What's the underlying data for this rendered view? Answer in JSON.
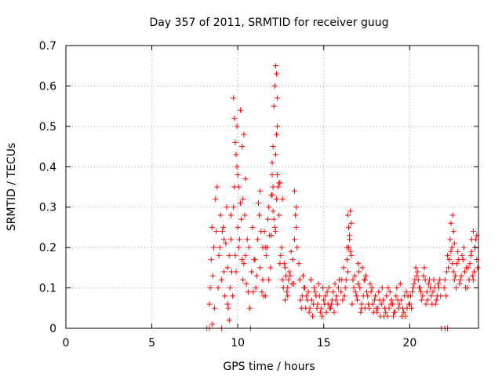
{
  "chart_data": {
    "type": "scatter",
    "title": "Day 357 of 2011, SRMTID for receiver guug",
    "xlabel": "GPS time / hours",
    "ylabel": "SRMTID / TECUs",
    "xlim": [
      0,
      24
    ],
    "ylim": [
      0,
      0.7
    ],
    "x_ticks": [
      0,
      5,
      10,
      15,
      20
    ],
    "x_tick_labels": [
      "0",
      "5",
      "10",
      "15",
      "20"
    ],
    "y_ticks": [
      0,
      0.1,
      0.2,
      0.3,
      0.4,
      0.5,
      0.6,
      0.7
    ],
    "y_tick_labels": [
      "0",
      "0.1",
      "0.2",
      "0.3",
      "0.4",
      "0.5",
      "0.6",
      "0.7"
    ],
    "grid": true,
    "legend": "none",
    "marker": "plus",
    "color": "#ff0000",
    "series": [
      {
        "x": [
          8.2,
          8.35,
          8.5,
          9.05,
          10.75,
          21.85,
          22.05,
          22.2,
          8.35,
          8.5,
          8.7,
          8.9,
          9.05,
          9.25,
          9.45,
          9.6,
          9.75,
          9.9,
          10.05,
          10.2,
          10.35,
          10.5,
          10.65,
          10.85,
          8.4,
          8.6,
          8.8,
          9.0,
          9.2,
          9.4,
          9.55,
          9.7,
          9.85,
          10.0,
          10.15,
          10.3,
          10.45,
          10.6,
          10.8,
          10.95,
          8.45,
          8.65,
          8.85,
          9.15,
          9.35,
          9.5,
          9.65,
          9.8,
          9.95,
          10.1,
          10.25,
          10.4,
          10.55,
          10.7,
          10.9,
          9.75,
          9.8,
          9.85,
          9.9,
          9.95,
          10.0,
          10.05,
          10.15,
          10.25,
          10.3,
          10.35,
          10.45,
          9.1,
          9.2,
          9.3,
          9.4,
          9.5,
          9.6,
          8.55,
          8.75,
          8.95,
          11.0,
          11.15,
          11.3,
          11.45,
          11.6,
          11.75,
          11.9,
          12.05,
          12.2,
          12.35,
          12.5,
          12.65,
          12.8,
          12.95,
          13.1,
          13.25,
          13.4,
          13.55,
          11.05,
          11.2,
          11.35,
          11.5,
          11.65,
          11.8,
          11.95,
          12.1,
          12.25,
          12.4,
          12.55,
          12.7,
          12.85,
          13.0,
          13.15,
          13.3,
          13.45,
          11.1,
          11.25,
          11.4,
          11.55,
          11.7,
          11.85,
          12.0,
          12.15,
          12.3,
          12.45,
          12.6,
          12.75,
          12.9,
          13.05,
          13.2,
          13.35,
          12.0,
          12.05,
          12.1,
          12.15,
          12.2,
          12.25,
          12.3,
          12.2,
          12.25,
          12.3,
          11.95,
          12.0,
          12.05,
          12.4,
          12.45,
          11.3,
          11.45,
          11.6,
          11.8,
          12.6,
          12.75,
          12.9,
          13.3,
          13.4,
          13.6,
          13.75,
          13.9,
          14.05,
          14.2,
          14.35,
          14.5,
          14.65,
          14.8,
          14.95,
          15.1,
          15.25,
          15.4,
          15.55,
          15.7,
          15.85,
          13.65,
          13.8,
          13.95,
          14.1,
          14.25,
          14.4,
          14.55,
          14.7,
          14.85,
          15.0,
          15.15,
          15.3,
          15.45,
          15.6,
          15.75,
          15.9,
          13.7,
          13.85,
          14.0,
          14.15,
          14.3,
          14.45,
          14.6,
          14.75,
          14.9,
          15.05,
          15.2,
          15.35,
          15.5,
          15.65,
          15.8,
          16.0,
          16.15,
          16.3,
          16.45,
          16.6,
          16.75,
          16.9,
          17.05,
          17.2,
          17.35,
          17.5,
          17.65,
          17.8,
          17.95,
          16.05,
          16.2,
          16.35,
          16.5,
          16.65,
          16.8,
          16.95,
          17.1,
          17.25,
          17.4,
          17.55,
          17.7,
          17.85,
          16.1,
          16.25,
          16.4,
          16.55,
          16.7,
          16.85,
          17.0,
          17.15,
          17.3,
          17.45,
          17.6,
          17.75,
          17.9,
          16.4,
          16.5,
          16.6,
          16.55,
          16.45,
          16.35,
          17.0,
          17.2,
          17.4,
          18.0,
          18.15,
          18.3,
          18.45,
          18.6,
          18.75,
          18.9,
          19.05,
          19.2,
          19.35,
          19.5,
          19.65,
          19.8,
          19.95,
          18.05,
          18.2,
          18.35,
          18.5,
          18.65,
          18.8,
          18.95,
          19.1,
          19.25,
          19.4,
          19.55,
          19.7,
          19.85,
          18.1,
          18.25,
          18.4,
          18.55,
          18.7,
          18.85,
          19.0,
          19.15,
          19.3,
          19.45,
          19.6,
          19.75,
          19.9,
          20.0,
          20.15,
          20.3,
          20.45,
          20.6,
          20.75,
          20.9,
          21.05,
          21.2,
          21.35,
          21.5,
          21.65,
          21.8,
          20.05,
          20.2,
          20.35,
          20.5,
          20.65,
          20.8,
          20.95,
          21.1,
          21.25,
          21.4,
          21.55,
          21.7,
          20.1,
          20.25,
          20.4,
          20.55,
          20.7,
          20.85,
          21.0,
          21.15,
          21.3,
          21.45,
          21.6,
          21.75,
          22.0,
          22.15,
          22.3,
          22.45,
          22.6,
          22.75,
          22.9,
          23.05,
          23.2,
          23.35,
          23.5,
          23.65,
          23.8,
          23.95,
          22.05,
          22.2,
          22.35,
          22.5,
          22.65,
          22.8,
          22.95,
          23.1,
          23.25,
          23.4,
          23.55,
          23.7,
          23.85,
          22.1,
          22.25,
          22.4,
          22.55,
          22.7,
          22.85,
          23.0,
          23.15,
          23.3,
          23.45,
          23.6,
          23.75,
          23.9,
          22.4,
          22.5,
          22.55,
          22.6,
          23.6,
          23.7,
          23.8,
          23.9
        ],
        "y": [
          0,
          0,
          0.01,
          0,
          0,
          0,
          0,
          0,
          0.06,
          0.25,
          0.32,
          0.18,
          0.12,
          0.08,
          0.05,
          0.22,
          0.3,
          0.14,
          0.2,
          0.27,
          0.16,
          0.11,
          0.2,
          0.25,
          0.1,
          0.2,
          0.35,
          0.28,
          0.22,
          0.15,
          0.1,
          0.08,
          0.18,
          0.25,
          0.31,
          0.12,
          0.18,
          0.09,
          0.14,
          0.17,
          0.17,
          0.05,
          0.1,
          0.25,
          0.3,
          0.18,
          0.14,
          0.35,
          0.4,
          0.22,
          0.17,
          0.28,
          0.22,
          0.05,
          0.09,
          0.57,
          0.52,
          0.46,
          0.43,
          0.5,
          0.38,
          0.35,
          0.54,
          0.45,
          0.32,
          0.48,
          0.37,
          0.24,
          0.14,
          0.21,
          0.06,
          0.02,
          0.28,
          0.13,
          0.24,
          0.2,
          0.17,
          0.22,
          0.34,
          0.12,
          0.2,
          0.27,
          0.15,
          0.29,
          0.24,
          0.35,
          0.18,
          0.1,
          0.13,
          0.12,
          0.19,
          0.11,
          0.3,
          0.16,
          0.1,
          0.31,
          0.24,
          0.08,
          0.18,
          0.3,
          0.23,
          0.27,
          0.32,
          0.36,
          0.2,
          0.16,
          0.09,
          0.14,
          0.11,
          0.22,
          0.2,
          0.13,
          0.28,
          0.09,
          0.24,
          0.2,
          0.23,
          0.33,
          0.25,
          0.38,
          0.16,
          0.12,
          0.15,
          0.08,
          0.13,
          0.17,
          0.28,
          0.38,
          0.45,
          0.55,
          0.6,
          0.65,
          0.63,
          0.57,
          0.43,
          0.48,
          0.5,
          0.33,
          0.41,
          0.35,
          0.28,
          0.36,
          0.15,
          0.2,
          0.08,
          0.12,
          0.32,
          0.07,
          0.1,
          0.34,
          0.25,
          0.12,
          0.08,
          0.1,
          0.07,
          0.05,
          0.03,
          0.09,
          0.06,
          0.04,
          0.1,
          0.08,
          0.06,
          0.05,
          0.09,
          0.07,
          0.1,
          0.07,
          0.13,
          0.05,
          0.09,
          0.12,
          0.06,
          0.08,
          0.11,
          0.05,
          0.07,
          0.04,
          0.1,
          0.06,
          0.04,
          0.08,
          0.12,
          0.05,
          0.1,
          0.08,
          0.04,
          0.07,
          0.1,
          0.05,
          0.08,
          0.03,
          0.06,
          0.09,
          0.05,
          0.07,
          0.11,
          0.06,
          0.09,
          0.15,
          0.12,
          0.2,
          0.26,
          0.1,
          0.08,
          0.14,
          0.06,
          0.12,
          0.09,
          0.05,
          0.1,
          0.07,
          0.12,
          0.08,
          0.17,
          0.22,
          0.06,
          0.13,
          0.07,
          0.1,
          0.15,
          0.05,
          0.08,
          0.11,
          0.06,
          0.07,
          0.1,
          0.14,
          0.19,
          0.12,
          0.09,
          0.11,
          0.04,
          0.08,
          0.13,
          0.06,
          0.09,
          0.04,
          0.28,
          0.23,
          0.18,
          0.29,
          0.25,
          0.2,
          0.16,
          0.05,
          0.12,
          0.08,
          0.05,
          0.03,
          0.07,
          0.04,
          0.1,
          0.06,
          0.03,
          0.08,
          0.05,
          0.07,
          0.04,
          0.09,
          0.06,
          0.05,
          0.09,
          0.06,
          0.03,
          0.08,
          0.05,
          0.07,
          0.04,
          0.1,
          0.06,
          0.03,
          0.08,
          0.05,
          0.04,
          0.07,
          0.1,
          0.05,
          0.03,
          0.09,
          0.06,
          0.04,
          0.07,
          0.11,
          0.05,
          0.03,
          0.08,
          0.06,
          0.09,
          0.12,
          0.14,
          0.1,
          0.08,
          0.12,
          0.07,
          0.1,
          0.09,
          0.06,
          0.11,
          0.08,
          0.08,
          0.1,
          0.15,
          0.12,
          0.09,
          0.13,
          0.06,
          0.11,
          0.08,
          0.12,
          0.07,
          0.1,
          0.05,
          0.11,
          0.13,
          0.1,
          0.07,
          0.15,
          0.09,
          0.12,
          0.06,
          0.1,
          0.08,
          0.12,
          0.1,
          0.14,
          0.17,
          0.2,
          0.12,
          0.16,
          0.11,
          0.18,
          0.14,
          0.1,
          0.16,
          0.13,
          0.2,
          0.15,
          0.12,
          0.18,
          0.22,
          0.16,
          0.13,
          0.19,
          0.12,
          0.17,
          0.1,
          0.15,
          0.18,
          0.12,
          0.22,
          0.08,
          0.15,
          0.19,
          0.14,
          0.1,
          0.17,
          0.13,
          0.2,
          0.15,
          0.12,
          0.19,
          0.14,
          0.17,
          0.26,
          0.28,
          0.24,
          0.21,
          0.22,
          0.24,
          0.2,
          0.23
        ]
      }
    ]
  }
}
